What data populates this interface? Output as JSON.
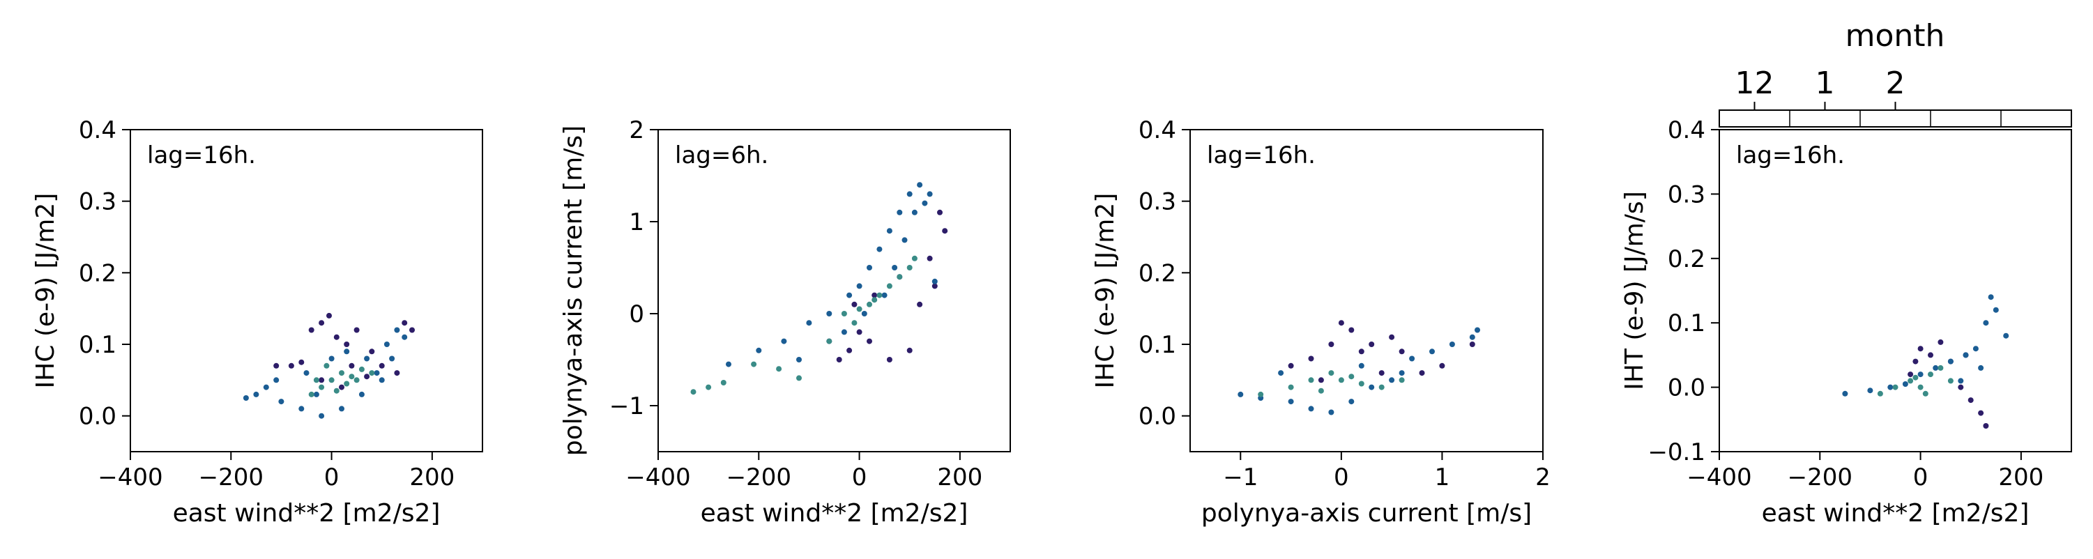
{
  "colors": {
    "month_12": "#2d1d68",
    "month_1": "#1b5d94",
    "month_2": "#3a8c87",
    "month_3": "#6bbf6b",
    "month_4": "#e3e17a"
  },
  "colorbar": {
    "title": "month",
    "tick_labels": [
      "12",
      "1",
      "2"
    ],
    "colors": [
      "#2d1d68",
      "#1b5d94",
      "#3a8c87",
      "#6bbf6b",
      "#e3e17a"
    ]
  },
  "chart_data": [
    {
      "type": "scatter",
      "annotation": "lag=16h.",
      "xlabel": "east wind**2 [m2/s2]",
      "ylabel": "IHC (e-9) [J/m2]",
      "xlim": [
        -400,
        300
      ],
      "ylim": [
        -0.05,
        0.4
      ],
      "xticks": [
        -400,
        -200,
        0,
        200
      ],
      "xtick_labels": [
        "−400",
        "−200",
        "0",
        "200"
      ],
      "yticks": [
        0.0,
        0.1,
        0.2,
        0.3,
        0.4
      ],
      "ytick_labels": [
        "0.0",
        "0.1",
        "0.2",
        "0.3",
        "0.4"
      ],
      "series": [
        {
          "color": "#2d1d68",
          "points": [
            [
              -110,
              0.07
            ],
            [
              -60,
              0.075
            ],
            [
              -40,
              0.12
            ],
            [
              -20,
              0.13
            ],
            [
              -5,
              0.14
            ],
            [
              10,
              0.11
            ],
            [
              30,
              0.1
            ],
            [
              50,
              0.12
            ],
            [
              80,
              0.09
            ],
            [
              -80,
              0.07
            ],
            [
              40,
              0.07
            ],
            [
              100,
              0.07
            ],
            [
              130,
              0.06
            ],
            [
              145,
              0.13
            ],
            [
              160,
              0.12
            ],
            [
              20,
              0.04
            ],
            [
              -20,
              0.05
            ],
            [
              70,
              0.055
            ]
          ]
        },
        {
          "color": "#1b5d94",
          "points": [
            [
              -170,
              0.025
            ],
            [
              -150,
              0.03
            ],
            [
              -100,
              0.02
            ],
            [
              -60,
              0.01
            ],
            [
              -20,
              0.0
            ],
            [
              20,
              0.01
            ],
            [
              60,
              0.03
            ],
            [
              90,
              0.06
            ],
            [
              110,
              0.1
            ],
            [
              130,
              0.12
            ],
            [
              145,
              0.11
            ],
            [
              -30,
              0.03
            ],
            [
              -110,
              0.05
            ],
            [
              -130,
              0.04
            ],
            [
              0,
              0.08
            ],
            [
              30,
              0.09
            ],
            [
              120,
              0.08
            ],
            [
              100,
              0.05
            ],
            [
              -50,
              0.06
            ],
            [
              70,
              0.08
            ]
          ]
        },
        {
          "color": "#3a8c87",
          "points": [
            [
              -40,
              0.03
            ],
            [
              -20,
              0.04
            ],
            [
              0,
              0.05
            ],
            [
              20,
              0.06
            ],
            [
              40,
              0.055
            ],
            [
              60,
              0.065
            ],
            [
              -10,
              0.07
            ],
            [
              30,
              0.045
            ],
            [
              50,
              0.05
            ],
            [
              -30,
              0.05
            ],
            [
              80,
              0.06
            ],
            [
              10,
              0.035
            ]
          ]
        }
      ]
    },
    {
      "type": "scatter",
      "annotation": "lag=6h.",
      "xlabel": "east wind**2 [m2/s2]",
      "ylabel": "polynya-axis current [m/s]",
      "xlim": [
        -400,
        300
      ],
      "ylim": [
        -1.5,
        2
      ],
      "xticks": [
        -400,
        -200,
        0,
        200
      ],
      "xtick_labels": [
        "−400",
        "−200",
        "0",
        "200"
      ],
      "yticks": [
        -1,
        0,
        1,
        2
      ],
      "ytick_labels": [
        "−1",
        "0",
        "1",
        "2"
      ],
      "series": [
        {
          "color": "#2d1d68",
          "points": [
            [
              -60,
              -0.3
            ],
            [
              -40,
              -0.5
            ],
            [
              -20,
              -0.4
            ],
            [
              0,
              -0.2
            ],
            [
              20,
              -0.3
            ],
            [
              60,
              -0.5
            ],
            [
              100,
              -0.4
            ],
            [
              120,
              0.1
            ],
            [
              140,
              0.6
            ],
            [
              160,
              1.1
            ],
            [
              170,
              0.9
            ],
            [
              30,
              0.2
            ],
            [
              -10,
              0.1
            ],
            [
              80,
              0.4
            ],
            [
              150,
              0.3
            ]
          ]
        },
        {
          "color": "#1b5d94",
          "points": [
            [
              -260,
              -0.55
            ],
            [
              -200,
              -0.4
            ],
            [
              -150,
              -0.3
            ],
            [
              -100,
              -0.1
            ],
            [
              -60,
              0.0
            ],
            [
              -20,
              0.2
            ],
            [
              0,
              0.3
            ],
            [
              20,
              0.5
            ],
            [
              40,
              0.7
            ],
            [
              60,
              0.9
            ],
            [
              80,
              1.1
            ],
            [
              100,
              1.3
            ],
            [
              120,
              1.4
            ],
            [
              140,
              1.3
            ],
            [
              130,
              1.2
            ],
            [
              110,
              1.1
            ],
            [
              90,
              0.8
            ],
            [
              70,
              0.5
            ],
            [
              50,
              0.2
            ],
            [
              -30,
              -0.2
            ],
            [
              10,
              0.0
            ],
            [
              150,
              0.35
            ],
            [
              -120,
              -0.5
            ]
          ]
        },
        {
          "color": "#3a8c87",
          "points": [
            [
              -330,
              -0.85
            ],
            [
              -300,
              -0.8
            ],
            [
              -270,
              -0.75
            ],
            [
              -210,
              -0.55
            ],
            [
              -160,
              -0.6
            ],
            [
              -120,
              -0.7
            ],
            [
              -60,
              -0.3
            ],
            [
              -30,
              0.0
            ],
            [
              0,
              0.05
            ],
            [
              20,
              0.1
            ],
            [
              40,
              0.2
            ],
            [
              60,
              0.3
            ],
            [
              80,
              0.4
            ],
            [
              100,
              0.5
            ],
            [
              110,
              0.6
            ],
            [
              -10,
              -0.1
            ],
            [
              30,
              0.15
            ]
          ]
        }
      ]
    },
    {
      "type": "scatter",
      "annotation": "lag=16h.",
      "xlabel": "polynya-axis current [m/s]",
      "ylabel": "IHC (e-9) [J/m2]",
      "xlim": [
        -1.5,
        2
      ],
      "ylim": [
        -0.05,
        0.4
      ],
      "xticks": [
        -1,
        0,
        1,
        2
      ],
      "xtick_labels": [
        "−1",
        "0",
        "1",
        "2"
      ],
      "yticks": [
        0.0,
        0.1,
        0.2,
        0.3,
        0.4
      ],
      "ytick_labels": [
        "0.0",
        "0.1",
        "0.2",
        "0.3",
        "0.4"
      ],
      "series": [
        {
          "color": "#2d1d68",
          "points": [
            [
              -0.5,
              0.07
            ],
            [
              -0.3,
              0.08
            ],
            [
              -0.1,
              0.1
            ],
            [
              0.0,
              0.13
            ],
            [
              0.1,
              0.12
            ],
            [
              0.2,
              0.09
            ],
            [
              0.3,
              0.1
            ],
            [
              0.5,
              0.11
            ],
            [
              0.6,
              0.09
            ],
            [
              0.8,
              0.06
            ],
            [
              1.0,
              0.07
            ],
            [
              1.3,
              0.1
            ],
            [
              0.4,
              0.06
            ],
            [
              -0.2,
              0.05
            ]
          ]
        },
        {
          "color": "#1b5d94",
          "points": [
            [
              -1.0,
              0.03
            ],
            [
              -0.8,
              0.025
            ],
            [
              -0.5,
              0.02
            ],
            [
              -0.3,
              0.01
            ],
            [
              -0.1,
              0.005
            ],
            [
              0.1,
              0.02
            ],
            [
              0.3,
              0.04
            ],
            [
              0.5,
              0.05
            ],
            [
              0.7,
              0.08
            ],
            [
              0.9,
              0.09
            ],
            [
              1.1,
              0.1
            ],
            [
              1.3,
              0.11
            ],
            [
              1.35,
              0.12
            ],
            [
              -0.6,
              0.06
            ],
            [
              0.2,
              0.07
            ],
            [
              0.6,
              0.06
            ]
          ]
        },
        {
          "color": "#3a8c87",
          "points": [
            [
              -0.8,
              0.03
            ],
            [
              -0.5,
              0.04
            ],
            [
              -0.3,
              0.05
            ],
            [
              -0.1,
              0.06
            ],
            [
              0.0,
              0.05
            ],
            [
              0.2,
              0.045
            ],
            [
              0.4,
              0.04
            ],
            [
              0.6,
              0.05
            ],
            [
              -0.2,
              0.035
            ],
            [
              0.1,
              0.055
            ]
          ]
        }
      ]
    },
    {
      "type": "scatter",
      "annotation": "lag=16h.",
      "xlabel": "east wind**2 [m2/s2]",
      "ylabel": "IHT (e-9) [J/m/s]",
      "xlim": [
        -400,
        300
      ],
      "ylim": [
        -0.1,
        0.4
      ],
      "xticks": [
        -400,
        -200,
        0,
        200
      ],
      "xtick_labels": [
        "−400",
        "−200",
        "0",
        "200"
      ],
      "yticks": [
        -0.1,
        0.0,
        0.1,
        0.2,
        0.3,
        0.4
      ],
      "ytick_labels": [
        "−0.1",
        "0.0",
        "0.1",
        "0.2",
        "0.3",
        "0.4"
      ],
      "series": [
        {
          "color": "#2d1d68",
          "points": [
            [
              -10,
              0.04
            ],
            [
              0,
              0.06
            ],
            [
              20,
              0.05
            ],
            [
              40,
              0.07
            ],
            [
              60,
              0.04
            ],
            [
              80,
              0.0
            ],
            [
              100,
              -0.02
            ],
            [
              120,
              -0.04
            ],
            [
              130,
              -0.06
            ],
            [
              -20,
              0.02
            ],
            [
              90,
              0.05
            ]
          ]
        },
        {
          "color": "#1b5d94",
          "points": [
            [
              -150,
              -0.01
            ],
            [
              -100,
              -0.005
            ],
            [
              -60,
              0.0
            ],
            [
              -30,
              0.005
            ],
            [
              0,
              0.02
            ],
            [
              30,
              0.03
            ],
            [
              60,
              0.04
            ],
            [
              90,
              0.05
            ],
            [
              110,
              0.06
            ],
            [
              130,
              0.1
            ],
            [
              140,
              0.14
            ],
            [
              150,
              0.12
            ],
            [
              170,
              0.08
            ],
            [
              120,
              0.03
            ],
            [
              80,
              0.01
            ]
          ]
        },
        {
          "color": "#3a8c87",
          "points": [
            [
              -80,
              -0.01
            ],
            [
              -50,
              0.0
            ],
            [
              -20,
              0.01
            ],
            [
              0,
              0.0
            ],
            [
              20,
              0.02
            ],
            [
              40,
              0.03
            ],
            [
              60,
              0.01
            ],
            [
              10,
              -0.01
            ],
            [
              -10,
              0.015
            ]
          ]
        }
      ]
    }
  ]
}
